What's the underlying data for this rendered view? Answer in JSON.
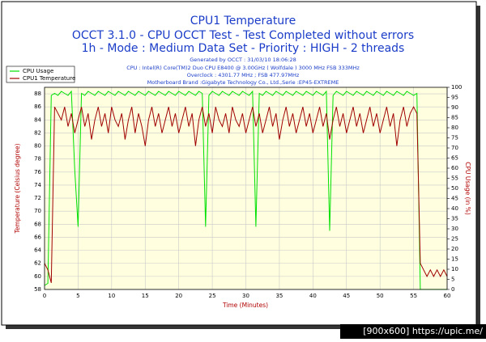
{
  "chart_data": {
    "type": "line",
    "title": "CPU1 Temperature",
    "subtitle_lines": [
      "OCCT 3.1.0 - CPU OCCT Test - Test Completed without errors",
      "1h - Mode : Medium Data Set - Priority : HIGH - 2 threads"
    ],
    "info_lines": [
      "Generated by OCCT : 31/03/10 18:06:28",
      "CPU : Intel(R) Core(TM)2 Duo CPU E8400 @ 3.00GHz ( Wolfdale ) 3000 MHz FSB 333MHz",
      "Overclock : 4301.77 MHz ; FSB 477.97MHz",
      "Motherboard Brand :Gigabyte Technology Co., Ltd.,Serie :EP45-EXTREME"
    ],
    "x_label": "Time (Minutes)",
    "y_label": "Temperature (Celsius degree)",
    "y2_label": "CPU Usage (in %)",
    "watermark": "[900x600] https://upic.me/",
    "xlim": [
      0,
      60
    ],
    "xticks": [
      0,
      5,
      10,
      15,
      20,
      25,
      30,
      35,
      40,
      45,
      50,
      55,
      60
    ],
    "ylim": [
      58,
      89
    ],
    "yticks": [
      58,
      60,
      62,
      64,
      66,
      68,
      70,
      72,
      74,
      76,
      78,
      80,
      82,
      84,
      86,
      88
    ],
    "y2lim": [
      0,
      100
    ],
    "y2ticks": [
      0,
      5,
      10,
      15,
      20,
      25,
      30,
      35,
      40,
      45,
      50,
      55,
      60,
      65,
      70,
      75,
      80,
      85,
      90,
      95,
      100
    ],
    "grid": true,
    "legend": "top-left",
    "x": [
      0,
      0.5,
      1,
      1.5,
      2,
      2.5,
      3,
      3.5,
      4,
      4.5,
      5,
      5.5,
      6,
      6.5,
      7,
      7.5,
      8,
      8.5,
      9,
      9.5,
      10,
      10.5,
      11,
      11.5,
      12,
      12.5,
      13,
      13.5,
      14,
      14.5,
      15,
      15.5,
      16,
      16.5,
      17,
      17.5,
      18,
      18.5,
      19,
      19.5,
      20,
      20.5,
      21,
      21.5,
      22,
      22.5,
      23,
      23.5,
      24,
      24.5,
      25,
      25.5,
      26,
      26.5,
      27,
      27.5,
      28,
      28.5,
      29,
      29.5,
      30,
      30.5,
      31,
      31.5,
      32,
      32.5,
      33,
      33.5,
      34,
      34.5,
      35,
      35.5,
      36,
      36.5,
      37,
      37.5,
      38,
      38.5,
      39,
      39.5,
      40,
      40.5,
      41,
      41.5,
      42,
      42.5,
      43,
      43.5,
      44,
      44.5,
      45,
      45.5,
      46,
      46.5,
      47,
      47.5,
      48,
      48.5,
      49,
      49.5,
      50,
      50.5,
      51,
      51.5,
      52,
      52.5,
      53,
      53.5,
      54,
      54.5,
      55,
      55.5,
      56,
      56.5,
      57,
      57.5,
      58,
      58.5,
      59,
      59.5,
      60
    ],
    "series": [
      {
        "name": "CPU Usage",
        "color": "#00e000",
        "axis": "y2",
        "values": [
          2,
          3,
          96,
          97,
          96,
          98,
          97,
          96,
          98,
          59,
          31,
          97,
          96,
          98,
          97,
          96,
          98,
          97,
          96,
          98,
          97,
          96,
          98,
          97,
          96,
          98,
          97,
          96,
          98,
          97,
          96,
          98,
          97,
          96,
          98,
          97,
          96,
          98,
          97,
          96,
          98,
          97,
          96,
          98,
          97,
          96,
          98,
          97,
          31,
          96,
          98,
          97,
          96,
          98,
          97,
          96,
          98,
          97,
          96,
          98,
          97,
          96,
          98,
          31,
          97,
          96,
          98,
          97,
          96,
          98,
          97,
          96,
          98,
          97,
          96,
          98,
          97,
          96,
          98,
          97,
          96,
          98,
          97,
          96,
          98,
          29,
          96,
          98,
          97,
          96,
          98,
          97,
          96,
          98,
          97,
          96,
          98,
          97,
          96,
          98,
          97,
          96,
          98,
          97,
          96,
          98,
          97,
          96,
          98,
          97,
          96,
          97,
          0,
          0,
          0,
          0,
          0,
          0,
          0,
          0,
          0
        ]
      },
      {
        "name": "CPU1 Temperature",
        "color": "#a00000",
        "values": [
          62,
          61,
          59,
          86,
          85,
          84,
          86,
          83,
          85,
          82,
          84,
          86,
          83,
          85,
          81,
          84,
          86,
          83,
          85,
          82,
          86,
          84,
          83,
          85,
          81,
          84,
          86,
          82,
          85,
          83,
          80,
          84,
          86,
          83,
          85,
          82,
          84,
          86,
          83,
          85,
          82,
          84,
          86,
          83,
          85,
          80,
          84,
          86,
          83,
          85,
          82,
          86,
          84,
          83,
          85,
          82,
          86,
          84,
          83,
          85,
          82,
          84,
          86,
          83,
          85,
          82,
          84,
          86,
          83,
          85,
          81,
          84,
          86,
          83,
          85,
          82,
          84,
          86,
          83,
          85,
          82,
          84,
          86,
          83,
          85,
          81,
          84,
          86,
          83,
          85,
          82,
          84,
          86,
          83,
          85,
          82,
          84,
          86,
          83,
          85,
          82,
          84,
          86,
          83,
          85,
          80,
          84,
          86,
          83,
          85,
          86,
          85,
          62,
          61,
          60,
          61,
          60,
          61,
          60,
          61,
          60
        ]
      }
    ]
  }
}
